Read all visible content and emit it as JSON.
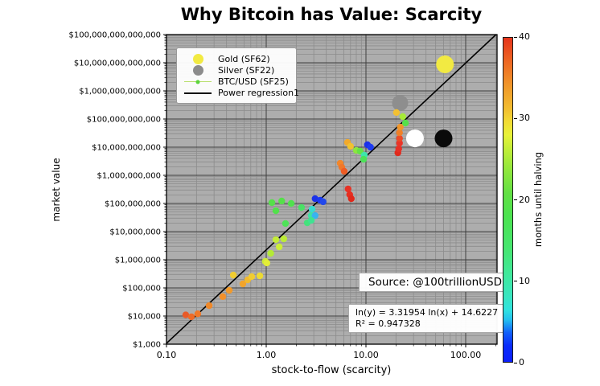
{
  "chart_data": {
    "type": "scatter",
    "title": "Why Bitcoin has Value: Scarcity",
    "xlabel": "stock-to-flow (scarcity)",
    "ylabel": "market value",
    "x_scale": "log",
    "y_scale": "log",
    "xlim": [
      0.1,
      206
    ],
    "ylim": [
      1000,
      100000000000000
    ],
    "grid": "both",
    "plot_bg": "#adadad",
    "minor_grid_color": "#8c8c8c",
    "major_grid_color": "#3f3f3f",
    "x_ticks": [
      {
        "value": 0.1,
        "label": "0.10"
      },
      {
        "value": 1,
        "label": "1.00"
      },
      {
        "value": 10,
        "label": "10.00"
      },
      {
        "value": 100,
        "label": "100.00"
      }
    ],
    "y_ticks": [
      {
        "value": 1000,
        "label": "$1,000"
      },
      {
        "value": 10000,
        "label": "$10,000"
      },
      {
        "value": 100000,
        "label": "$100,000"
      },
      {
        "value": 1000000,
        "label": "$1,000,000"
      },
      {
        "value": 10000000,
        "label": "$10,000,000"
      },
      {
        "value": 100000000,
        "label": "$100,000,000"
      },
      {
        "value": 1000000000,
        "label": "$1,000,000,000"
      },
      {
        "value": 10000000000,
        "label": "$10,000,000,000"
      },
      {
        "value": 100000000000,
        "label": "$100,000,000,000"
      },
      {
        "value": 1000000000000,
        "label": "$1,000,000,000,000"
      },
      {
        "value": 10000000000000,
        "label": "$10,000,000,000,000"
      },
      {
        "value": 100000000000000,
        "label": "$100,000,000,000,000"
      }
    ],
    "legend": {
      "position": "upper-left",
      "entries": [
        {
          "label": "Gold (SF62)",
          "marker": "circle",
          "color": "#f2ea42"
        },
        {
          "label": "Silver (SF22)",
          "marker": "circle",
          "color": "#8c8c8c"
        },
        {
          "label": "BTC/USD (SF25)",
          "marker": "dot-line",
          "color": "#5cd43c",
          "line_color": "#b9e070"
        },
        {
          "label": "Power regression1",
          "marker": "line",
          "color": "#000000"
        }
      ]
    },
    "regression": {
      "equation": "ln(y) = 3.31954 ln(x) + 14.6227",
      "r_squared": "R² = 0.947328",
      "slope": 3.31954,
      "intercept": 14.6227
    },
    "source_note": "Source: @100trillionUSD",
    "colorbar": {
      "label": "months until halving",
      "min": 0,
      "max": 40,
      "ticks": [
        0,
        10,
        20,
        30,
        40
      ],
      "stops": [
        [
          0,
          "#0c1ffa"
        ],
        [
          0.05,
          "#0a2cfa"
        ],
        [
          0.09,
          "#1260fa"
        ],
        [
          0.13,
          "#24c0ee"
        ],
        [
          0.16,
          "#30e2e0"
        ],
        [
          0.2,
          "#38e6c2"
        ],
        [
          0.27,
          "#40e89c"
        ],
        [
          0.35,
          "#46e670"
        ],
        [
          0.45,
          "#4ce350"
        ],
        [
          0.52,
          "#62e044"
        ],
        [
          0.6,
          "#96e83c"
        ],
        [
          0.66,
          "#c4ee38"
        ],
        [
          0.7,
          "#e8f238"
        ],
        [
          0.74,
          "#f2dc34"
        ],
        [
          0.78,
          "#f2be30"
        ],
        [
          0.85,
          "#f0982a"
        ],
        [
          0.92,
          "#ee6c24"
        ],
        [
          1,
          "#e6341c"
        ]
      ]
    },
    "assets": [
      {
        "name": "silver",
        "sf": 22,
        "market_value": 370000000000,
        "color": "#8e8e8e",
        "radius": 10
      },
      {
        "name": "white-dot",
        "sf": 31,
        "market_value": 20500000000,
        "color": "#ffffff",
        "radius": 11
      },
      {
        "name": "black-dot",
        "sf": 60,
        "market_value": 20500000000,
        "color": "#0a0a0a",
        "radius": 11
      },
      {
        "name": "gold",
        "sf": 62,
        "market_value": 8760000000000,
        "color": "#f2ea42",
        "radius": 11
      }
    ],
    "btc_points": [
      {
        "sf": 0.156,
        "mv": 11000,
        "c": "#e85a28"
      },
      {
        "sf": 0.178,
        "mv": 9400,
        "c": "#ee6a26"
      },
      {
        "sf": 0.206,
        "mv": 12000,
        "c": "#f07828"
      },
      {
        "sf": 0.268,
        "mv": 23500,
        "c": "#f08828"
      },
      {
        "sf": 0.367,
        "mv": 49000,
        "c": "#f2902a"
      },
      {
        "sf": 0.426,
        "mv": 82000,
        "c": "#f29a2a"
      },
      {
        "sf": 0.468,
        "mv": 286000,
        "c": "#f0cc30"
      },
      {
        "sf": 0.583,
        "mv": 139000,
        "c": "#f2a42c"
      },
      {
        "sf": 0.652,
        "mv": 193000,
        "c": "#f2ba2e"
      },
      {
        "sf": 0.716,
        "mv": 252000,
        "c": "#f0cc30"
      },
      {
        "sf": 0.863,
        "mv": 268000,
        "c": "#ecda32"
      },
      {
        "sf": 0.978,
        "mv": 877000,
        "c": "#cdea38"
      },
      {
        "sf": 1.015,
        "mv": 770000,
        "c": "#e4ee36"
      },
      {
        "sf": 1.11,
        "mv": 1690000,
        "c": "#b4ea36"
      },
      {
        "sf": 1.25,
        "mv": 5170000,
        "c": "#c4ec38"
      },
      {
        "sf": 1.35,
        "mv": 2870000,
        "c": "#ccee38"
      },
      {
        "sf": 1.5,
        "mv": 5530000,
        "c": "#bcec36"
      },
      {
        "sf": 1.14,
        "mv": 107000000,
        "c": "#55e04a"
      },
      {
        "sf": 1.43,
        "mv": 122000000,
        "c": "#55e04a"
      },
      {
        "sf": 1.78,
        "mv": 100000000,
        "c": "#50e04e"
      },
      {
        "sf": 1.25,
        "mv": 55000000,
        "c": "#52e04c"
      },
      {
        "sf": 1.56,
        "mv": 19400000,
        "c": "#4ee258"
      },
      {
        "sf": 2.26,
        "mv": 72000000,
        "c": "#4ae066"
      },
      {
        "sf": 2.58,
        "mv": 20600000,
        "c": "#44e27c"
      },
      {
        "sf": 2.83,
        "mv": 37000000,
        "c": "#3ee2a4"
      },
      {
        "sf": 2.88,
        "mv": 63000000,
        "c": "#38dcd0"
      },
      {
        "sf": 3.09,
        "mv": 37000000,
        "c": "#38b4f0"
      },
      {
        "sf": 2.83,
        "mv": 25000000,
        "c": "#40e292"
      },
      {
        "sf": 3.09,
        "mv": 148000000,
        "c": "#1b32ea"
      },
      {
        "sf": 3.48,
        "mv": 130000000,
        "c": "#1b38f2"
      },
      {
        "sf": 3.72,
        "mv": 115000000,
        "c": "#2248ec"
      },
      {
        "sf": 6.62,
        "mv": 327000000,
        "c": "#e63226"
      },
      {
        "sf": 6.87,
        "mv": 206000000,
        "c": "#e62e20"
      },
      {
        "sf": 7.13,
        "mv": 148000000,
        "c": "#e0281a"
      },
      {
        "sf": 5.52,
        "mv": 2680000000,
        "c": "#f2862a"
      },
      {
        "sf": 5.73,
        "mv": 1940000000,
        "c": "#f0782a"
      },
      {
        "sf": 6.05,
        "mv": 1390000000,
        "c": "#ee5c24"
      },
      {
        "sf": 6.52,
        "mv": 14800000000,
        "c": "#f2aa2c"
      },
      {
        "sf": 7.0,
        "mv": 10700000000,
        "c": "#f0c230"
      },
      {
        "sf": 8.0,
        "mv": 7700000000,
        "c": "#8ce63e"
      },
      {
        "sf": 8.76,
        "mv": 7200000000,
        "c": "#64e246"
      },
      {
        "sf": 9.63,
        "mv": 5200000000,
        "c": "#3ee6ac"
      },
      {
        "sf": 9.47,
        "mv": 3700000000,
        "c": "#4ce258"
      },
      {
        "sf": 10.35,
        "mv": 12200000000,
        "c": "#1b30ea"
      },
      {
        "sf": 11.1,
        "mv": 10000000000,
        "c": "#1d3af2"
      },
      {
        "sf": 20.9,
        "mv": 6300000000,
        "c": "#e02a1c"
      },
      {
        "sf": 21.3,
        "mv": 8700000000,
        "c": "#e63026"
      },
      {
        "sf": 21.7,
        "mv": 13900000000,
        "c": "#ea3428"
      },
      {
        "sf": 21.7,
        "mv": 20500000000,
        "c": "#ec4a26"
      },
      {
        "sf": 21.7,
        "mv": 32600000000,
        "c": "#f08028"
      },
      {
        "sf": 22.1,
        "mv": 51600000000,
        "c": "#f0962a"
      },
      {
        "sf": 20.2,
        "mv": 170000000000,
        "c": "#f2c032"
      },
      {
        "sf": 23.4,
        "mv": 122000000000,
        "c": "#a6ea38"
      },
      {
        "sf": 24.9,
        "mv": 72000000000,
        "c": "#55e04a"
      }
    ]
  }
}
